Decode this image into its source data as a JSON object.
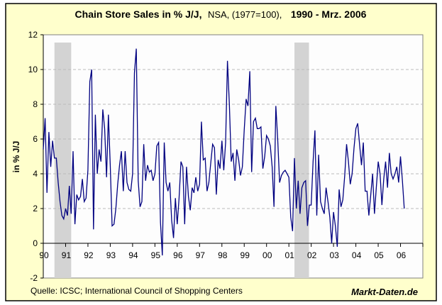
{
  "chart_data": {
    "type": "line",
    "title": {
      "main": "Chain Store Sales in % J/J,",
      "sub": "NSA, (1977=100),",
      "period": "1990 - Mrz. 2006"
    },
    "ylabel": "in % J/J",
    "xlabel": "",
    "ylim": [
      -2,
      12
    ],
    "xlim": [
      1990,
      2007
    ],
    "y_ticks": [
      "12",
      "10",
      "8",
      "6",
      "4",
      "2",
      "0",
      "-2"
    ],
    "y_tick_values": [
      12,
      10,
      8,
      6,
      4,
      2,
      0,
      -2
    ],
    "x_ticks": [
      "90",
      "91",
      "92",
      "93",
      "94",
      "95",
      "96",
      "97",
      "98",
      "99",
      "00",
      "01",
      "02",
      "03",
      "04",
      "05",
      "06"
    ],
    "x_tick_values": [
      1990,
      1991,
      1992,
      1993,
      1994,
      1995,
      1996,
      1997,
      1998,
      1999,
      2000,
      2001,
      2002,
      2003,
      2004,
      2005,
      2006
    ],
    "grid": "horizontal dashed",
    "frequency": "monthly",
    "period": "1990-01 to 2006-03",
    "shaded_periods": [
      [
        1990.5,
        1991.25
      ],
      [
        2001.25,
        2001.9
      ]
    ],
    "colors": {
      "line": "#000080",
      "shade": "#D3D3D3",
      "panel": "#FFFFCC",
      "plot": "#FDFDFD",
      "grid": "#BBBBBB"
    },
    "series": [
      {
        "values": [
          5.4,
          7.2,
          2.9,
          6.4,
          4.4,
          5.9,
          4.9,
          4.9,
          3.5,
          2.4,
          1.6,
          1.4,
          2.0,
          1.6,
          3.3,
          1.7,
          5.3,
          1.1,
          2.8,
          2.5,
          2.7,
          3.7,
          2.4,
          2.6,
          4.2,
          9.3,
          10.0,
          0.8,
          7.4,
          4.0,
          5.4,
          4.7,
          7.7,
          6.6,
          3.8,
          7.4,
          4.5,
          1.0,
          1.1,
          2.0,
          3.4,
          4.5,
          5.3,
          3.0,
          5.3,
          3.5,
          3.1,
          3.0,
          4.0,
          9.8,
          11.2,
          3.6,
          2.1,
          2.4,
          5.7,
          3.6,
          4.5,
          4.1,
          4.2,
          3.6,
          4.0,
          5.6,
          5.8,
          1.2,
          -0.7,
          5.8,
          3.5,
          3.0,
          3.5,
          1.3,
          0.3,
          2.6,
          1.1,
          2.6,
          4.7,
          4.4,
          1.1,
          4.4,
          2.7,
          1.9,
          3.2,
          2.9,
          3.8,
          3.0,
          3.4,
          7.0,
          4.8,
          4.9,
          3.0,
          3.5,
          4.6,
          5.7,
          5.5,
          2.8,
          4.8,
          4.3,
          5.9,
          4.2,
          5.8,
          10.5,
          8.0,
          4.7,
          5.2,
          3.6,
          5.4,
          4.8,
          3.9,
          4.4,
          6.5,
          8.3,
          7.9,
          9.9,
          4.1,
          7.0,
          7.2,
          6.6,
          6.6,
          6.7,
          4.3,
          5.0,
          6.2,
          6.0,
          5.6,
          4.4,
          2.1,
          7.9,
          6.0,
          3.5,
          3.9,
          4.1,
          4.2,
          4.0,
          3.8,
          1.5,
          0.7,
          4.9,
          2.0,
          3.6,
          1.7,
          3.2,
          3.5,
          3.6,
          1.0,
          2.2,
          2.2,
          4.7,
          6.5,
          1.6,
          5.1,
          2.4,
          2.0,
          1.7,
          3.2,
          2.4,
          1.5,
          0.0,
          1.8,
          1.0,
          -0.2,
          3.1,
          2.1,
          2.5,
          3.9,
          5.7,
          4.7,
          3.4,
          4.0,
          5.5,
          6.6,
          6.9,
          5.7,
          4.5,
          5.8,
          3.0,
          3.0,
          1.6,
          2.8,
          4.0,
          1.7,
          3.2,
          4.7,
          4.0,
          2.2,
          3.7,
          4.7,
          3.2,
          5.2,
          4.0,
          3.7,
          4.0,
          4.4,
          3.5,
          5.0,
          3.6,
          2.0
        ]
      }
    ],
    "source": "Quelle: ICSC; International Council of Shopping Centers",
    "brand": "Markt-Daten.de"
  }
}
